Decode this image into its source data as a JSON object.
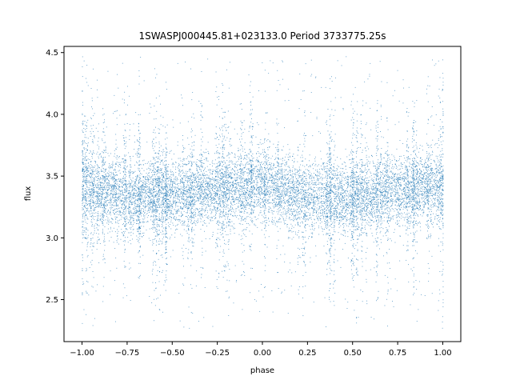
{
  "chart_data": {
    "type": "scatter",
    "title": "1SWASPJ000445.81+023133.0 Period 3733775.25s",
    "xlabel": "phase",
    "ylabel": "flux",
    "xlim": [
      -1.1,
      1.1
    ],
    "ylim": [
      2.16,
      4.55
    ],
    "x_ticks": [
      -1.0,
      -0.75,
      -0.5,
      -0.25,
      0.0,
      0.25,
      0.5,
      0.75,
      1.0
    ],
    "x_tick_labels": [
      "−1.00",
      "−0.75",
      "−0.50",
      "−0.25",
      "0.00",
      "0.25",
      "0.50",
      "0.75",
      "1.00"
    ],
    "y_ticks": [
      2.5,
      3.0,
      3.5,
      4.0,
      4.5
    ],
    "y_tick_labels": [
      "2.5",
      "3.0",
      "3.5",
      "4.0",
      "4.5"
    ],
    "grid": false,
    "point_color": "#1f77b4",
    "series": [
      {
        "phase_range": [
          -1.0,
          1.0
        ],
        "flux_center_profile": {
          "phase": [
            -1.0,
            -0.75,
            -0.5,
            -0.25,
            0.0,
            0.25,
            0.5,
            0.75,
            1.0
          ],
          "flux": [
            3.42,
            3.34,
            3.35,
            3.39,
            3.44,
            3.33,
            3.32,
            3.38,
            3.43
          ]
        },
        "flux_core_range": [
          3.05,
          3.8
        ],
        "flux_full_range": [
          2.27,
          4.47
        ]
      }
    ]
  }
}
